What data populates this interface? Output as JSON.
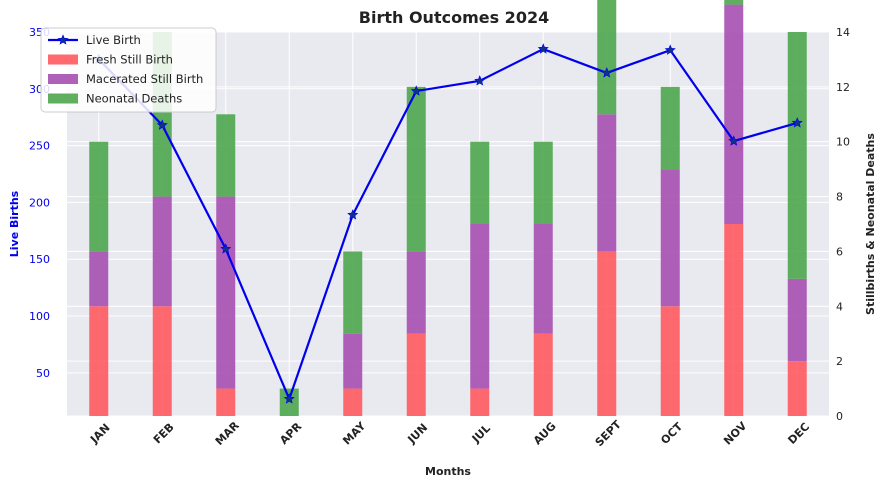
{
  "chart_data": {
    "type": "bar",
    "title": "Birth Outcomes 2024",
    "xlabel": "Months",
    "ylabel_left": "Live Births",
    "ylabel_right": "Stillbirths & Neonatal Deaths",
    "categories": [
      "JAN",
      "FEB",
      "MAR",
      "APR",
      "MAY",
      "JUN",
      "JUL",
      "AUG",
      "SEPT",
      "OCT",
      "NOV",
      "DEC"
    ],
    "ylim_left": [
      12,
      350
    ],
    "ylim_right": [
      0,
      14
    ],
    "yticks_left": [
      50,
      100,
      150,
      200,
      250,
      300,
      350
    ],
    "yticks_right": [
      0,
      2,
      4,
      6,
      8,
      10,
      12,
      14
    ],
    "grid": true,
    "legend_position": "top-left",
    "stacked_series": [
      {
        "name": "Fresh Still Birth",
        "color": "#ff5a5f",
        "axis": "right",
        "values": [
          4,
          4,
          1,
          0,
          1,
          3,
          1,
          3,
          6,
          4,
          7,
          2
        ]
      },
      {
        "name": "Macerated Still Birth",
        "color": "#a64fb0",
        "axis": "right",
        "values": [
          2,
          4,
          7,
          0,
          2,
          3,
          6,
          4,
          5,
          5,
          8,
          3
        ]
      },
      {
        "name": "Neonatal Deaths",
        "color": "#4ea64e",
        "axis": "right",
        "values": [
          4,
          6,
          3,
          1,
          3,
          6,
          3,
          3,
          5,
          3,
          3,
          9
        ]
      }
    ],
    "line_series": {
      "name": "Live Birth",
      "color": "#0000ee",
      "axis": "left",
      "marker": "star",
      "values": [
        326,
        268,
        159,
        27,
        189,
        298,
        307,
        335,
        314,
        334,
        254,
        270
      ]
    }
  },
  "colors": {
    "plot_bg": "#e9e9f0",
    "grid": "#ffffff",
    "left_axis": "#0000ee"
  }
}
